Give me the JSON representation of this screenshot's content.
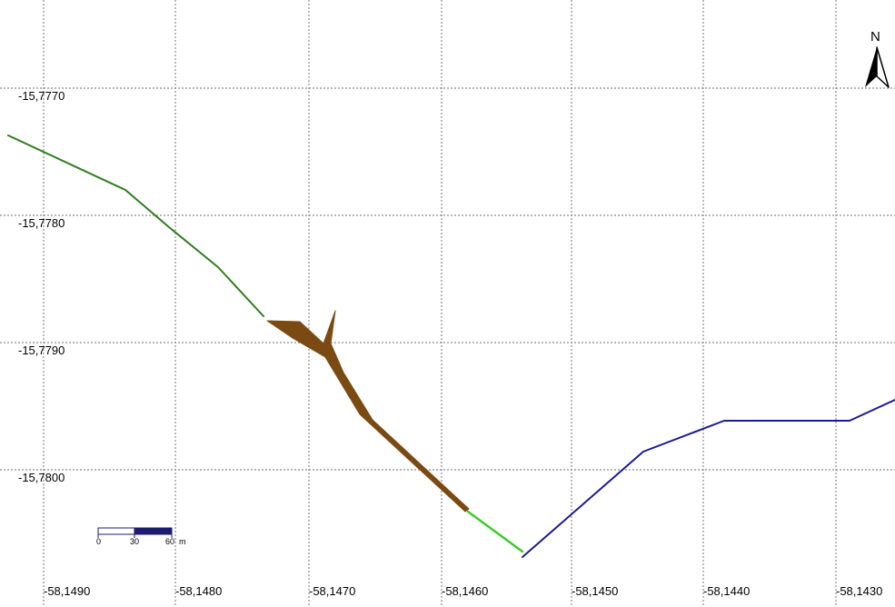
{
  "map": {
    "longitude_labels": [
      "-58,1490",
      "-58,1480",
      "-58,1470",
      "-58,1460",
      "-58,1450",
      "-58,1440",
      "-58,1430"
    ],
    "latitude_labels": [
      "-15,7770",
      "-15,7780",
      "-15,7790",
      "-15,7800"
    ],
    "longitudes": [
      -58.149,
      -58.148,
      -58.147,
      -58.146,
      -58.145,
      -58.144,
      -58.143
    ],
    "latitudes": [
      -15.777,
      -15.778,
      -15.779,
      -15.78
    ],
    "colors": {
      "background": "#ffffff",
      "grid": "#8c8c8c",
      "dark_green_line": "#2e7d1e",
      "light_green_line": "#3ccc28",
      "blue_line": "#1c1c8c",
      "brown_area": "#7a4a12",
      "scale_bar_fill": "#1c1c6e"
    }
  },
  "scale_bar": {
    "ticks": [
      "0",
      "30",
      "60"
    ],
    "unit": "m"
  },
  "north_arrow": {
    "label": "N"
  }
}
